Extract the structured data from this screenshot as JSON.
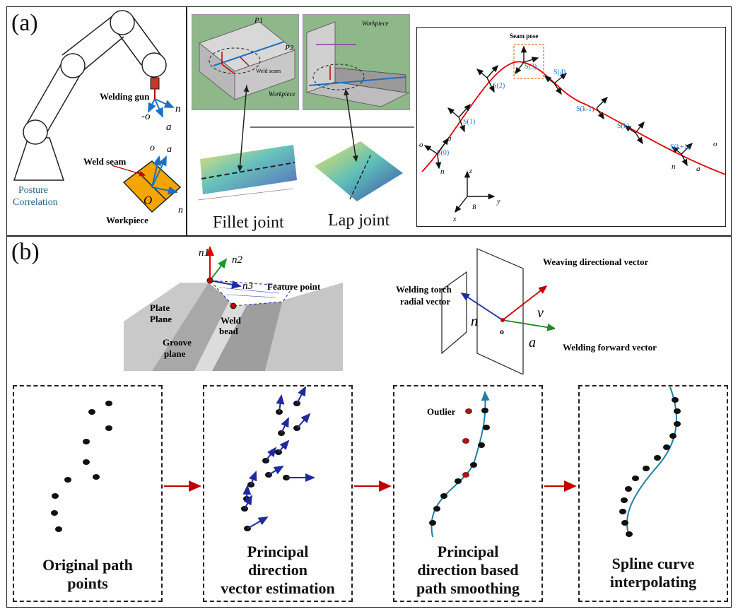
{
  "panel_a": {
    "label": "(a)",
    "robot": {
      "welding_gun": "Welding gun",
      "posture_correlation_line1": "Posture",
      "posture_correlation_line2": "Correlation",
      "weld_seam": "Weld seam",
      "workpiece": "Workpiece",
      "origin": "O",
      "vec_n": "n",
      "vec_o": "-o",
      "vec_a": "a",
      "vec_o2": "o",
      "vec_a2": "a",
      "vec_n2": "n"
    },
    "joints": {
      "fillet_caption": "Fillet joint",
      "lap_caption": "Lap joint",
      "fillet_image_label": "Workpiece",
      "lap_image_label": "Workpiece",
      "weld_seam_small": "Weld seam",
      "p1": "P1",
      "p2": "P2"
    },
    "seam": {
      "seam_pose": "Seam pose",
      "points": [
        "S(0)",
        "S(1)",
        "S(2)",
        "S(3)",
        "S(4)",
        "S(k-1)",
        "S(k)",
        "S(k+1)"
      ],
      "axis_z": "z",
      "axis_y": "y",
      "axis_x": "x",
      "axis_b": "B",
      "start_o": "o",
      "start_a": "a",
      "start_n": "n",
      "end_o": "o",
      "end_a": "a",
      "end_n": "n"
    }
  },
  "panel_b": {
    "label": "(b)",
    "groove": {
      "n1": "n1",
      "n2": "n2",
      "n3": "n3",
      "feature_point": "Feature point",
      "plate_plane_1": "Plate",
      "plate_plane_2": "Plane",
      "groove_plane_1": "Groove",
      "groove_plane_2": "plane",
      "weld_bead_1": "Weld",
      "weld_bead_2": "bead"
    },
    "torch": {
      "weaving": "Weaving directional vector",
      "radial_1": "Welding torch",
      "radial_2": "radial vector",
      "forward": "Welding forward vector",
      "v": "v",
      "n": "n",
      "a": "a",
      "o": "o"
    },
    "steps": [
      {
        "line1": "Original path",
        "line2": "points",
        "line3": ""
      },
      {
        "line1": "Principal",
        "line2": "direction",
        "line3": "vector estimation"
      },
      {
        "line1": "Principal",
        "line2": "direction based",
        "line3": "path smoothing"
      },
      {
        "line1": "Spline curve",
        "line2": "interpolating",
        "line3": ""
      }
    ],
    "outlier": "Outlier"
  },
  "colors": {
    "red_arrow": "#c00000",
    "dark_blue": "#1f2b9c",
    "teal": "#1f7fa0",
    "orange": "#f5a500",
    "gun_red": "#c0392b",
    "vec_blue": "#1f6fc0"
  }
}
